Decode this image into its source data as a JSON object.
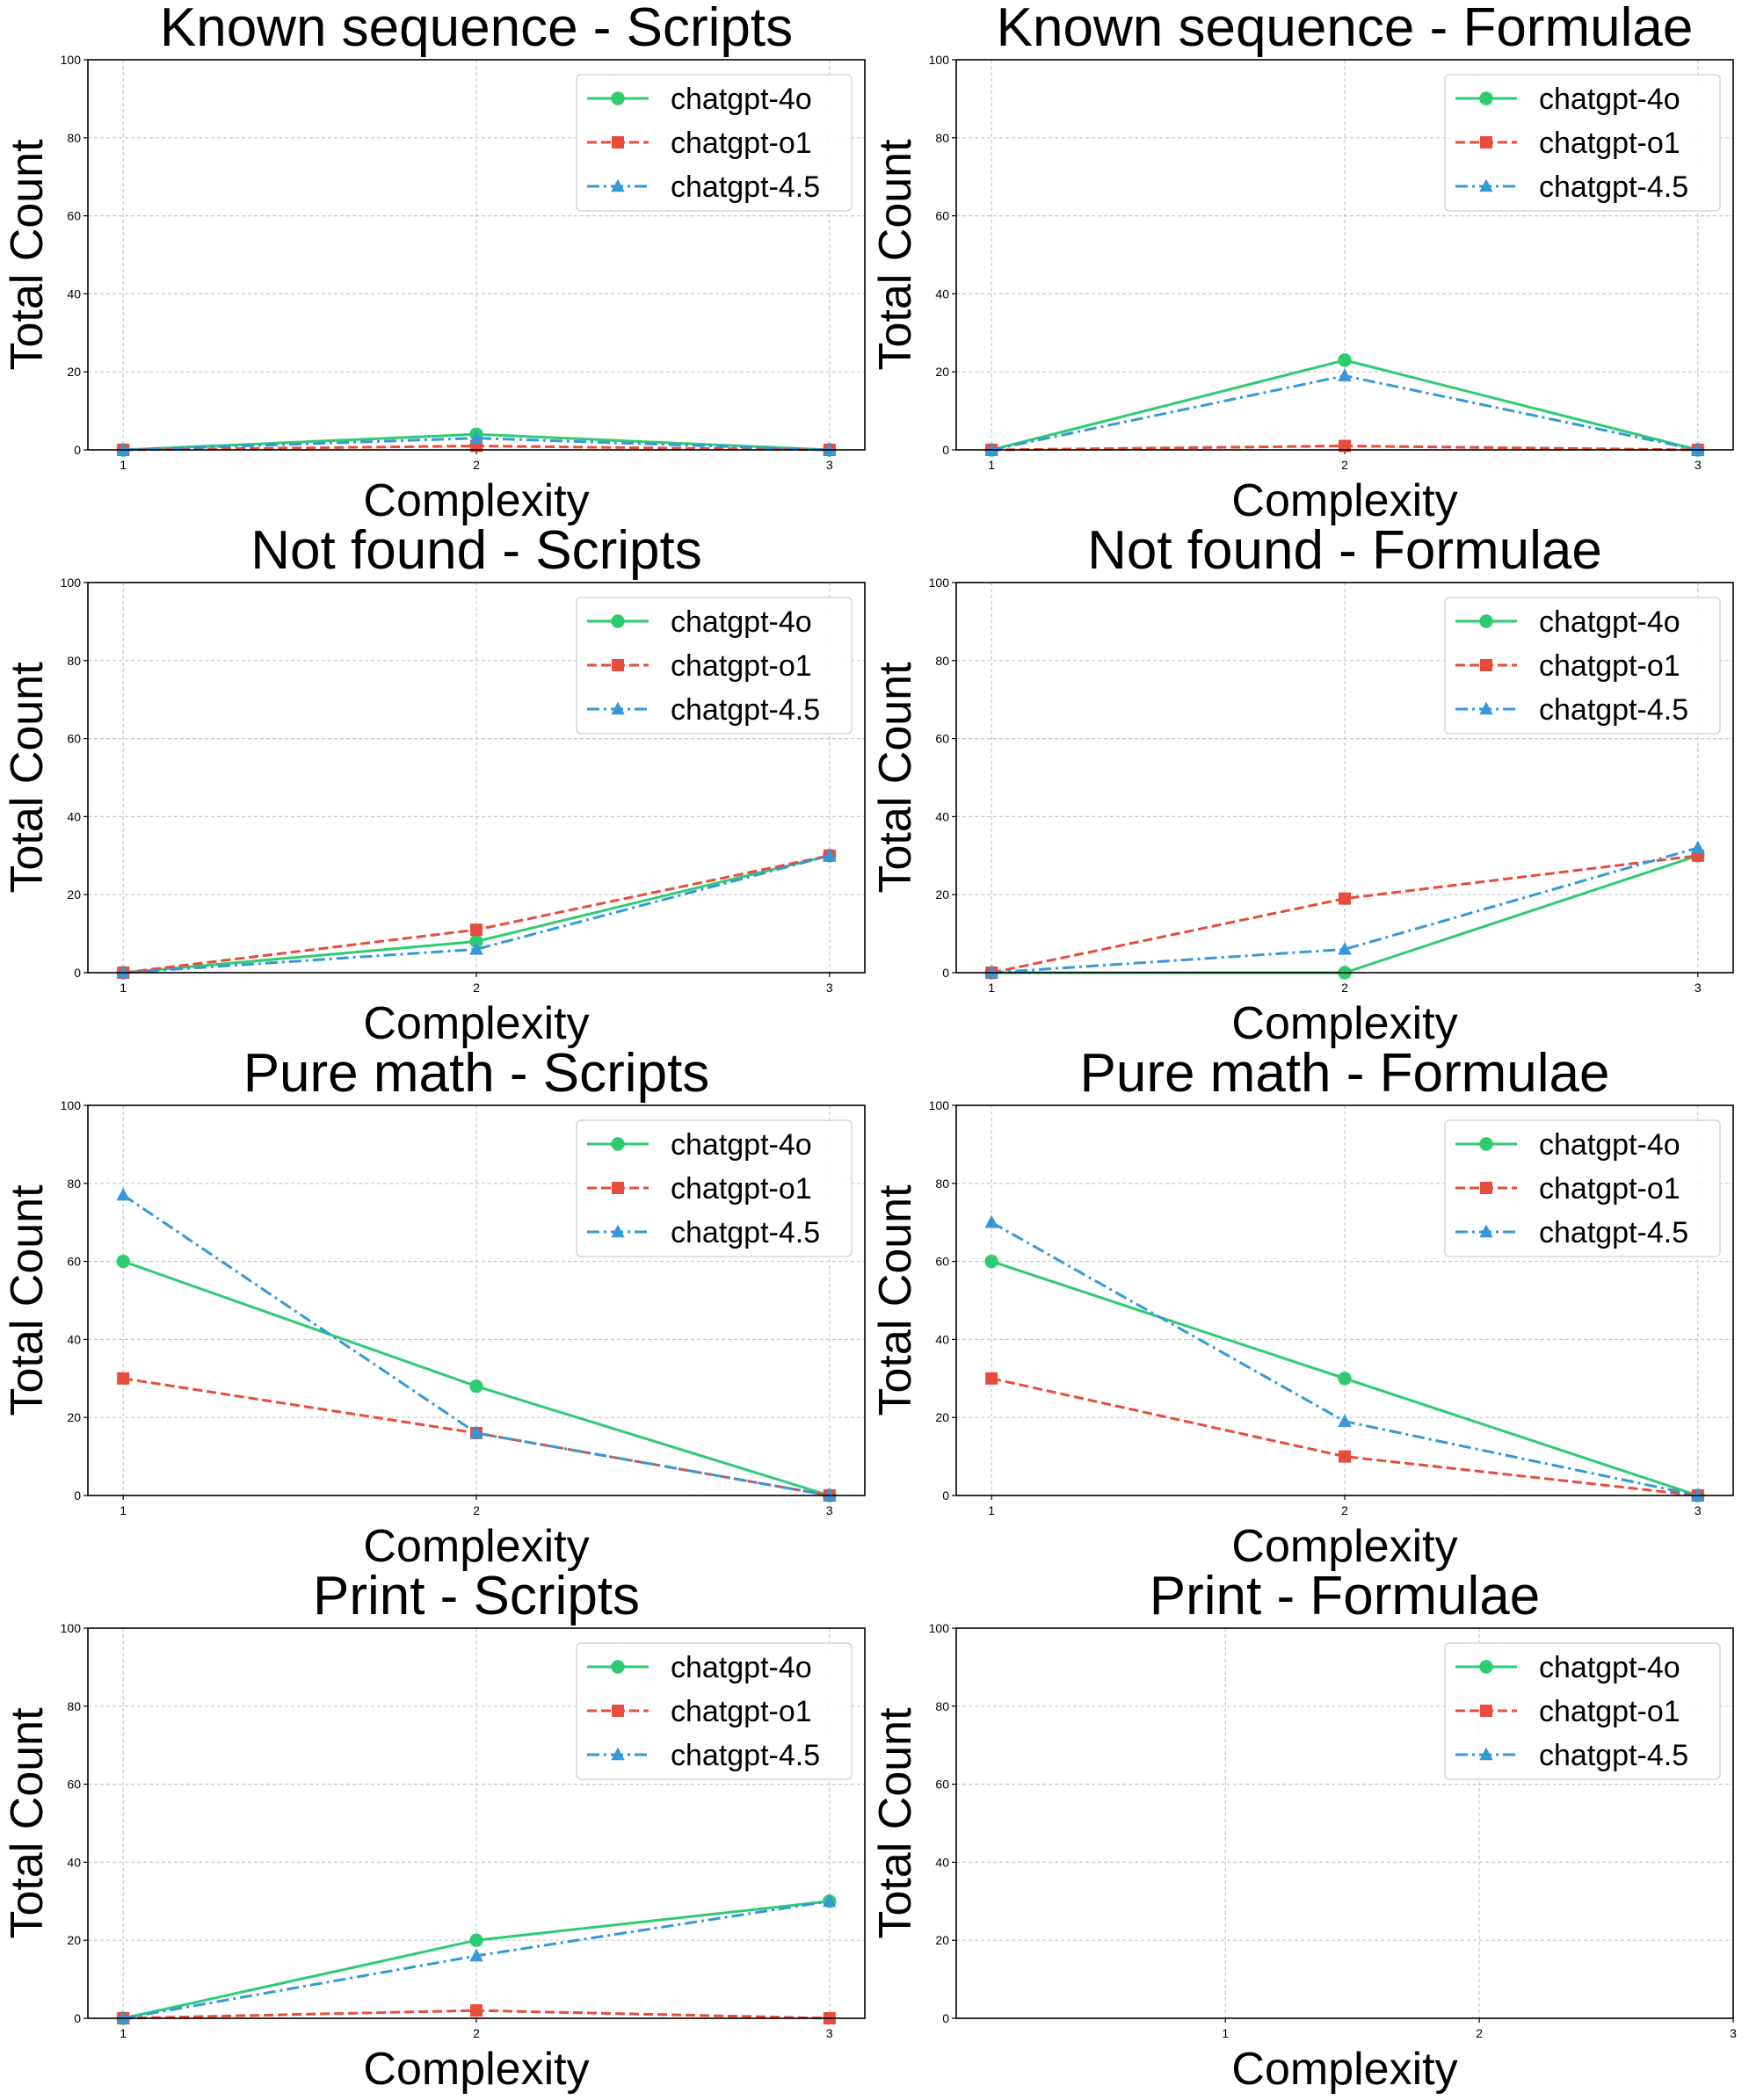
{
  "chart_data": {
    "type": "line",
    "colors": {
      "chatgpt-4o": "#2ecc71",
      "chatgpt-o1": "#e74c3c",
      "chatgpt-4.5": "#3498db"
    },
    "legend_placement": "upper-right",
    "grid": true,
    "panels": [
      {
        "title": "Known sequence - Scripts",
        "xlabel": "Complexity",
        "ylabel": "Total Count",
        "xlim": [
          0.9,
          3.1
        ],
        "ylim": [
          0,
          100
        ],
        "xticks": [
          1,
          2,
          3
        ],
        "yticks": [
          0,
          20,
          40,
          60,
          80,
          100
        ],
        "x": [
          1,
          2,
          3
        ],
        "series": [
          {
            "name": "chatgpt-4o",
            "values": [
              0,
              4,
              0
            ]
          },
          {
            "name": "chatgpt-o1",
            "values": [
              0,
              1,
              0
            ]
          },
          {
            "name": "chatgpt-4.5",
            "values": [
              0,
              3,
              0
            ]
          }
        ]
      },
      {
        "title": "Known sequence - Formulae",
        "xlabel": "Complexity",
        "ylabel": "Total Count",
        "xlim": [
          0.9,
          3.1
        ],
        "ylim": [
          0,
          100
        ],
        "xticks": [
          1,
          2,
          3
        ],
        "yticks": [
          0,
          20,
          40,
          60,
          80,
          100
        ],
        "x": [
          1,
          2,
          3
        ],
        "series": [
          {
            "name": "chatgpt-4o",
            "values": [
              0,
              23,
              0
            ]
          },
          {
            "name": "chatgpt-o1",
            "values": [
              0,
              1,
              0
            ]
          },
          {
            "name": "chatgpt-4.5",
            "values": [
              0,
              19,
              0
            ]
          }
        ]
      },
      {
        "title": "Not found - Scripts",
        "xlabel": "Complexity",
        "ylabel": "Total Count",
        "xlim": [
          0.9,
          3.1
        ],
        "ylim": [
          0,
          100
        ],
        "xticks": [
          1,
          2,
          3
        ],
        "yticks": [
          0,
          20,
          40,
          60,
          80,
          100
        ],
        "x": [
          1,
          2,
          3
        ],
        "series": [
          {
            "name": "chatgpt-4o",
            "values": [
              0,
              8,
              30
            ]
          },
          {
            "name": "chatgpt-o1",
            "values": [
              0,
              11,
              30
            ]
          },
          {
            "name": "chatgpt-4.5",
            "values": [
              0,
              6,
              30
            ]
          }
        ]
      },
      {
        "title": "Not found - Formulae",
        "xlabel": "Complexity",
        "ylabel": "Total Count",
        "xlim": [
          0.9,
          3.1
        ],
        "ylim": [
          0,
          100
        ],
        "xticks": [
          1,
          2,
          3
        ],
        "yticks": [
          0,
          20,
          40,
          60,
          80,
          100
        ],
        "x": [
          1,
          2,
          3
        ],
        "series": [
          {
            "name": "chatgpt-4o",
            "values": [
              0,
              0,
              30
            ]
          },
          {
            "name": "chatgpt-o1",
            "values": [
              0,
              19,
              30
            ]
          },
          {
            "name": "chatgpt-4.5",
            "values": [
              0,
              6,
              32
            ]
          }
        ]
      },
      {
        "title": "Pure math - Scripts",
        "xlabel": "Complexity",
        "ylabel": "Total Count",
        "xlim": [
          0.9,
          3.1
        ],
        "ylim": [
          0,
          100
        ],
        "xticks": [
          1,
          2,
          3
        ],
        "yticks": [
          0,
          20,
          40,
          60,
          80,
          100
        ],
        "x": [
          1,
          2,
          3
        ],
        "series": [
          {
            "name": "chatgpt-4o",
            "values": [
              60,
              28,
              0
            ]
          },
          {
            "name": "chatgpt-o1",
            "values": [
              30,
              16,
              0
            ]
          },
          {
            "name": "chatgpt-4.5",
            "values": [
              77,
              16,
              0
            ]
          }
        ]
      },
      {
        "title": "Pure math - Formulae",
        "xlabel": "Complexity",
        "ylabel": "Total Count",
        "xlim": [
          0.9,
          3.1
        ],
        "ylim": [
          0,
          100
        ],
        "xticks": [
          1,
          2,
          3
        ],
        "yticks": [
          0,
          20,
          40,
          60,
          80,
          100
        ],
        "x": [
          1,
          2,
          3
        ],
        "series": [
          {
            "name": "chatgpt-4o",
            "values": [
              60,
              30,
              0
            ]
          },
          {
            "name": "chatgpt-o1",
            "values": [
              30,
              10,
              0
            ]
          },
          {
            "name": "chatgpt-4.5",
            "values": [
              70,
              19,
              0
            ]
          }
        ]
      },
      {
        "title": "Print - Scripts",
        "xlabel": "Complexity",
        "ylabel": "Total Count",
        "xlim": [
          0.9,
          3.1
        ],
        "ylim": [
          0,
          100
        ],
        "xticks": [
          1,
          2,
          3
        ],
        "yticks": [
          0,
          20,
          40,
          60,
          80,
          100
        ],
        "x": [
          1,
          2,
          3
        ],
        "series": [
          {
            "name": "chatgpt-4o",
            "values": [
              0,
              20,
              30
            ]
          },
          {
            "name": "chatgpt-o1",
            "values": [
              0,
              2,
              0
            ]
          },
          {
            "name": "chatgpt-4.5",
            "values": [
              0,
              16,
              30
            ]
          }
        ]
      },
      {
        "title": "Print - Formulae",
        "xlabel": "Complexity",
        "ylabel": "Total Count",
        "xlim": [
          -0.06,
          3
        ],
        "ylim": [
          0,
          100
        ],
        "xticks": [
          1,
          2,
          3
        ],
        "yticks": [
          0,
          20,
          40,
          60,
          80,
          100
        ],
        "x": [],
        "series": [
          {
            "name": "chatgpt-4o",
            "values": []
          },
          {
            "name": "chatgpt-o1",
            "values": []
          },
          {
            "name": "chatgpt-4.5",
            "values": []
          }
        ]
      }
    ]
  }
}
